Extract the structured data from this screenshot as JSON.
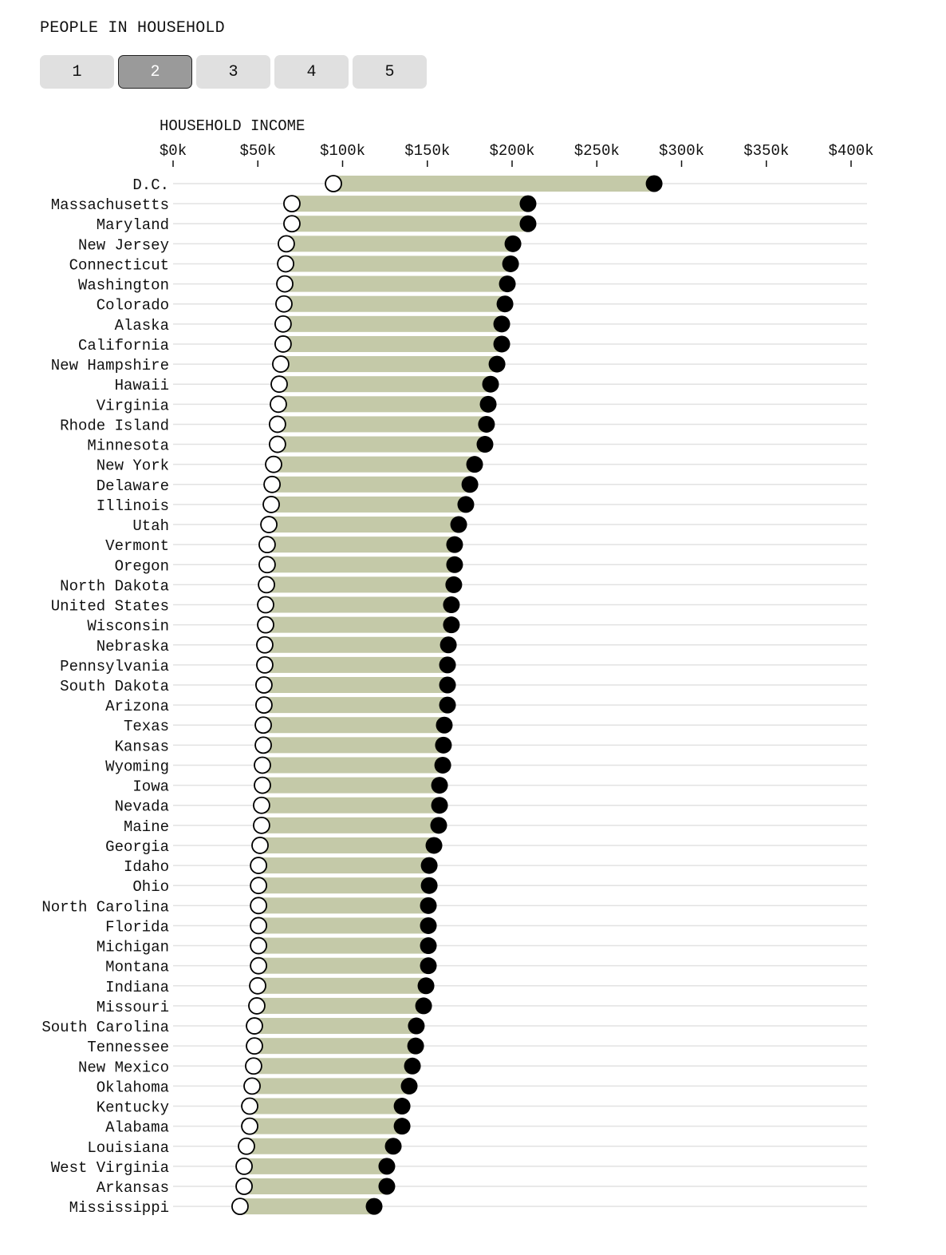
{
  "header": {
    "title": "PEOPLE IN HOUSEHOLD"
  },
  "tabs": [
    {
      "label": "1",
      "selected": false
    },
    {
      "label": "2",
      "selected": true
    },
    {
      "label": "3",
      "selected": false
    },
    {
      "label": "4",
      "selected": false
    },
    {
      "label": "5",
      "selected": false
    }
  ],
  "colors": {
    "bar": "#c4c9a8",
    "low_marker": "#ffffff",
    "high_marker": "#000000",
    "selected_tab": "#9a9a9a",
    "tab": "#e0e0e0"
  },
  "chart_data": {
    "type": "dumbbell",
    "title": "HOUSEHOLD INCOME",
    "xlim": [
      0,
      400
    ],
    "xticks": [
      {
        "value": 0,
        "label": "$0k"
      },
      {
        "value": 50,
        "label": "$50k"
      },
      {
        "value": 100,
        "label": "$100k"
      },
      {
        "value": 150,
        "label": "$150k"
      },
      {
        "value": 200,
        "label": "$200k"
      },
      {
        "value": 250,
        "label": "$250k"
      },
      {
        "value": 300,
        "label": "$300k"
      },
      {
        "value": 350,
        "label": "$350k"
      },
      {
        "value": 400,
        "label": "$400k"
      }
    ],
    "unit": "thousands USD",
    "categories": [
      "D.C.",
      "Massachusetts",
      "Maryland",
      "New Jersey",
      "Connecticut",
      "Washington",
      "Colorado",
      "Alaska",
      "California",
      "New Hampshire",
      "Hawaii",
      "Virginia",
      "Rhode Island",
      "Minnesota",
      "New York",
      "Delaware",
      "Illinois",
      "Utah",
      "Vermont",
      "Oregon",
      "North Dakota",
      "United States",
      "Wisconsin",
      "Nebraska",
      "Pennsylvania",
      "South Dakota",
      "Arizona",
      "Texas",
      "Kansas",
      "Wyoming",
      "Iowa",
      "Nevada",
      "Maine",
      "Georgia",
      "Idaho",
      "Ohio",
      "North Carolina",
      "Florida",
      "Michigan",
      "Montana",
      "Indiana",
      "Missouri",
      "South Carolina",
      "Tennessee",
      "New Mexico",
      "Oklahoma",
      "Kentucky",
      "Alabama",
      "Louisiana",
      "West Virginia",
      "Arkansas",
      "Mississippi"
    ],
    "low": [
      94.6,
      70.1,
      70.1,
      66.8,
      66.4,
      65.9,
      65.4,
      64.9,
      64.9,
      63.5,
      62.6,
      62.1,
      61.6,
      61.6,
      59.3,
      58.4,
      57.9,
      56.5,
      55.5,
      55.5,
      55.1,
      54.6,
      54.6,
      54.1,
      54.1,
      53.6,
      53.6,
      53.2,
      53.2,
      52.7,
      52.7,
      52.2,
      52.2,
      51.3,
      50.4,
      50.4,
      50.4,
      50.4,
      50.4,
      50.4,
      49.9,
      49.4,
      48.0,
      48.0,
      47.5,
      46.6,
      45.2,
      45.2,
      43.3,
      41.9,
      41.9,
      39.5
    ],
    "high": [
      283.8,
      209.4,
      209.4,
      200.5,
      199.1,
      197.2,
      195.8,
      193.9,
      193.9,
      191.1,
      187.3,
      185.9,
      184.9,
      184.0,
      177.9,
      175.1,
      172.7,
      168.5,
      166.1,
      166.1,
      165.6,
      164.2,
      164.2,
      162.4,
      161.9,
      161.9,
      161.9,
      160.0,
      159.5,
      159.1,
      157.2,
      157.2,
      156.7,
      153.9,
      151.1,
      151.1,
      150.6,
      150.6,
      150.6,
      150.6,
      149.2,
      147.8,
      143.5,
      143.1,
      141.2,
      139.3,
      135.1,
      135.1,
      129.9,
      126.1,
      126.1,
      118.6
    ]
  }
}
